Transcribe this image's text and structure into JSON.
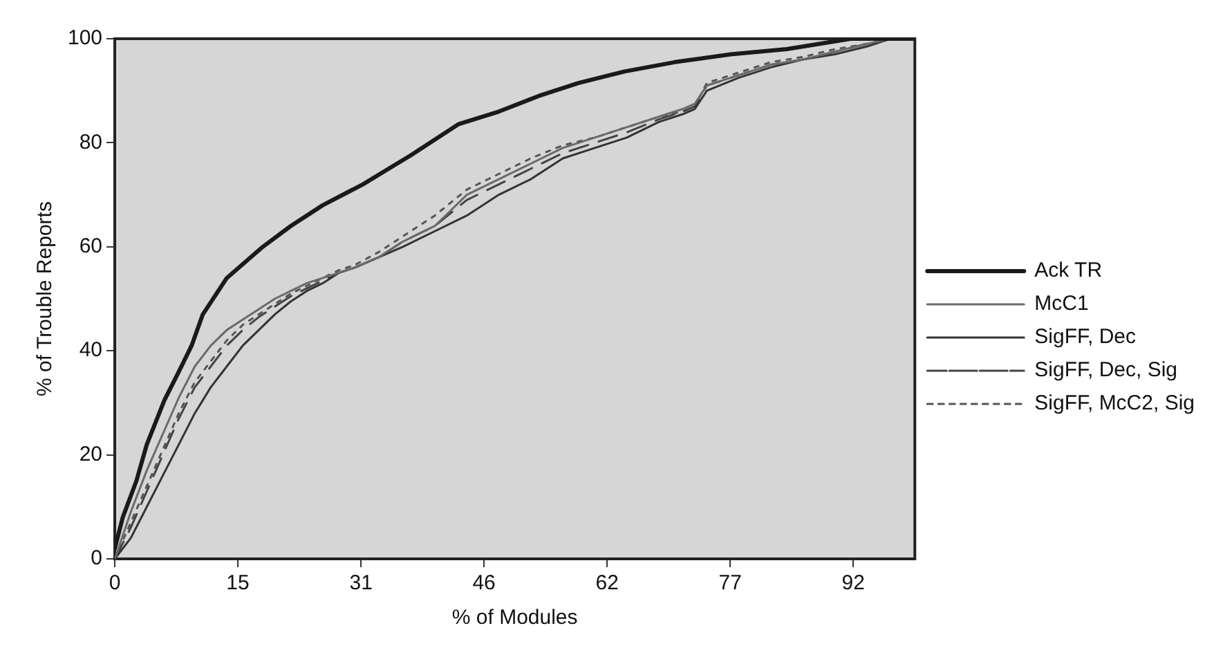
{
  "chart_data": {
    "type": "line",
    "xlabel": "% of Modules",
    "ylabel": "% of Trouble Reports",
    "xlim": [
      0,
      100
    ],
    "ylim": [
      0,
      100
    ],
    "xticks": [
      {
        "value": 0,
        "label": "0"
      },
      {
        "value": 15.38,
        "label": "15"
      },
      {
        "value": 30.77,
        "label": "31"
      },
      {
        "value": 46.15,
        "label": "46"
      },
      {
        "value": 61.54,
        "label": "62"
      },
      {
        "value": 76.92,
        "label": "77"
      },
      {
        "value": 92.31,
        "label": "92"
      }
    ],
    "yticks": [
      0,
      20,
      40,
      60,
      80,
      100
    ],
    "grid": false,
    "legend": "right",
    "marker": "none",
    "series": [
      {
        "name": "Ack TR",
        "color": "#1a1a1a",
        "line_style": "solid",
        "x": [
          0,
          1,
          2.7,
          4,
          6.2,
          8,
          9.6,
          11,
          14,
          18.5,
          22,
          26,
          31,
          37,
          43,
          48,
          53,
          58,
          63.7,
          70,
          77,
          84,
          92,
          100
        ],
        "values": [
          2,
          8,
          15,
          22,
          30.5,
          36,
          41,
          47,
          54,
          60,
          64,
          68,
          72,
          77.6,
          83.6,
          86,
          89,
          91.5,
          93.7,
          95.5,
          97,
          98,
          100,
          100
        ]
      },
      {
        "name": "McC1",
        "color": "#6a6a6a",
        "line_style": "solid",
        "x": [
          0,
          2,
          4,
          6,
          8,
          10,
          12,
          14,
          16,
          18,
          20,
          22,
          24,
          26,
          28,
          30,
          33,
          36,
          40,
          44,
          48,
          52,
          56,
          60,
          64,
          68,
          71,
          72.5,
          74,
          78,
          82,
          86,
          90,
          94,
          97,
          100
        ],
        "values": [
          0,
          9,
          17,
          24,
          31,
          37,
          41,
          44,
          46,
          48,
          50,
          51.5,
          53,
          54,
          55,
          56,
          58,
          61,
          64,
          70,
          73,
          76,
          79,
          81,
          83,
          85,
          86.5,
          87.5,
          91,
          93,
          95,
          96,
          97.5,
          99,
          100,
          100
        ]
      },
      {
        "name": "SigFF, Dec",
        "color": "#333333",
        "line_style": "solid",
        "x": [
          0,
          2,
          4,
          6,
          8,
          10,
          12,
          14,
          16,
          18,
          20,
          22,
          24,
          26,
          28,
          30,
          33,
          36,
          40,
          44,
          48,
          52,
          56,
          60,
          64,
          68,
          71,
          72.5,
          74,
          78,
          82,
          86,
          90,
          94,
          97,
          100
        ],
        "values": [
          0,
          4,
          10,
          16,
          22,
          28,
          33,
          37,
          41,
          44,
          47,
          49.5,
          51.5,
          53,
          55,
          56,
          58,
          60,
          63,
          66,
          70,
          73,
          77,
          79,
          81,
          84,
          85.5,
          86.5,
          90,
          92.5,
          94.5,
          96,
          97,
          98.5,
          100,
          100
        ]
      },
      {
        "name": "SigFF, Dec, Sig",
        "color": "#444444",
        "line_style": "dashed",
        "x": [
          0,
          2,
          4,
          6,
          8,
          10,
          12,
          14,
          16,
          18,
          20,
          22,
          24,
          26,
          28,
          30,
          33,
          36,
          40,
          44,
          48,
          52,
          56,
          60,
          64,
          68,
          71,
          72.5,
          74,
          78,
          82,
          86,
          90,
          94,
          97,
          100
        ],
        "values": [
          0,
          6,
          13,
          20,
          27,
          33,
          37,
          41,
          44,
          46.5,
          48.5,
          50.5,
          52,
          53.5,
          55,
          56,
          58,
          61,
          64,
          69,
          72,
          75,
          78,
          80,
          82,
          84.5,
          86,
          87,
          91,
          93,
          95,
          96,
          97.5,
          99,
          100,
          100
        ]
      },
      {
        "name": "SigFF, McC2, Sig",
        "color": "#555555",
        "line_style": "dotted",
        "x": [
          0,
          2,
          4,
          6,
          8,
          10,
          12,
          14,
          16,
          18,
          20,
          22,
          24,
          26,
          28,
          30,
          33,
          36,
          40,
          44,
          48,
          52,
          56,
          60,
          64,
          68,
          71,
          72.5,
          74,
          78,
          82,
          86,
          90,
          94,
          97,
          100
        ],
        "values": [
          0,
          7,
          14,
          21,
          28,
          34,
          38,
          42,
          45,
          47,
          49,
          51,
          52.5,
          54,
          55.5,
          56.5,
          59,
          62,
          66,
          71,
          74,
          77,
          79.5,
          81,
          83,
          85,
          86,
          87,
          91.5,
          93.5,
          95.5,
          96.5,
          98,
          99,
          100,
          100
        ]
      }
    ]
  }
}
